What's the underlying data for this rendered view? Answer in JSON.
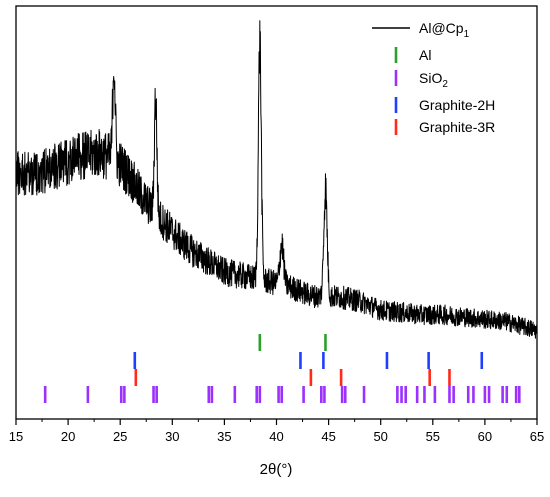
{
  "chart_data": {
    "type": "line",
    "title": "",
    "xlabel": "2θ(°)",
    "ylabel": "",
    "xlim": [
      15,
      65
    ],
    "xticks": [
      15,
      20,
      25,
      30,
      35,
      40,
      45,
      50,
      55,
      60,
      65
    ],
    "grid": false,
    "legend_position": "top-right",
    "series": [
      {
        "name": "Al@Cp1",
        "name_main": "Al@Cp",
        "name_sub": "1",
        "color": "#000000",
        "profile_x": [
          15,
          17,
          19,
          20,
          21,
          22,
          23,
          24,
          25,
          26,
          27,
          28,
          29,
          30,
          31,
          32,
          33,
          34,
          35,
          36,
          37,
          38,
          39,
          40,
          41,
          42,
          43,
          44,
          45,
          46,
          47,
          48,
          49,
          50,
          52,
          54,
          56,
          58,
          60,
          62,
          65
        ],
        "profile_y": [
          0.62,
          0.62,
          0.635,
          0.645,
          0.655,
          0.66,
          0.665,
          0.655,
          0.64,
          0.61,
          0.57,
          0.54,
          0.515,
          0.49,
          0.465,
          0.445,
          0.43,
          0.415,
          0.4,
          0.395,
          0.39,
          0.385,
          0.38,
          0.375,
          0.37,
          0.36,
          0.35,
          0.345,
          0.345,
          0.345,
          0.34,
          0.335,
          0.325,
          0.315,
          0.31,
          0.305,
          0.305,
          0.3,
          0.295,
          0.29,
          0.27
        ],
        "peaks": [
          {
            "x": 24.4,
            "height": 0.22,
            "width": 0.12
          },
          {
            "x": 28.4,
            "height": 0.26,
            "width": 0.12
          },
          {
            "x": 38.4,
            "height": 0.525,
            "width": 0.14
          },
          {
            "x": 40.5,
            "height": 0.09,
            "width": 0.18
          },
          {
            "x": 44.7,
            "height": 0.24,
            "width": 0.16
          }
        ]
      }
    ],
    "reference_series": [
      {
        "name": "Al",
        "color": "#2ca02c",
        "positions": [
          38.4,
          44.7
        ]
      },
      {
        "name": "SiO2",
        "name_main": "SiO",
        "name_sub": "2",
        "color": "#9b30ff",
        "positions": [
          17.8,
          21.9,
          25.1,
          25.4,
          28.2,
          28.5,
          33.5,
          33.8,
          36.0,
          38.1,
          38.4,
          40.2,
          40.5,
          42.6,
          44.3,
          44.6,
          46.3,
          46.6,
          48.4,
          51.6,
          52.0,
          52.4,
          53.5,
          54.2,
          55.2,
          56.6,
          57.0,
          58.4,
          58.9,
          60.0,
          60.4,
          61.7,
          62.1,
          63.0,
          63.3
        ]
      },
      {
        "name": "Graphite-2H",
        "color": "#1f3fff",
        "positions": [
          26.4,
          42.3,
          44.5,
          50.6,
          54.6,
          59.7
        ]
      },
      {
        "name": "Graphite-3R",
        "color": "#ff2a1a",
        "positions": [
          26.5,
          43.3,
          46.2,
          54.7,
          56.6
        ]
      }
    ]
  }
}
